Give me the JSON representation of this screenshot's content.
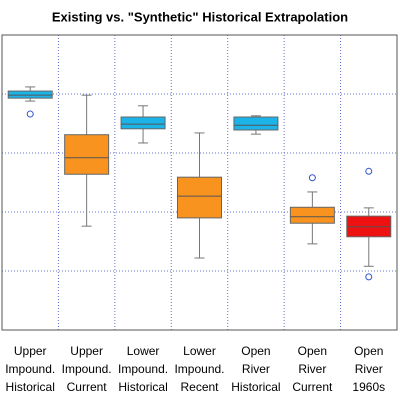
{
  "chart_data": {
    "type": "box",
    "title": "Existing vs. \"Synthetic\" Historical Extrapolation",
    "categories": [
      [
        "Upper",
        "Impound.",
        "Historical"
      ],
      [
        "Upper",
        "Impound.",
        "Current"
      ],
      [
        "Lower",
        "Impound.",
        "Historical"
      ],
      [
        "Lower",
        "Impound.",
        "Recent"
      ],
      [
        "Open",
        "River",
        "Historical"
      ],
      [
        "Open",
        "River",
        "Current"
      ],
      [
        "Open",
        "River",
        "1960s"
      ]
    ],
    "colors": [
      "#1cb4e8",
      "#f7931e",
      "#1cb4e8",
      "#f7931e",
      "#1cb4e8",
      "#f7931e",
      "#ee1111"
    ],
    "boxes": [
      {
        "whisker_low": 3.88,
        "q1": 3.93,
        "median": 3.98,
        "q3": 4.05,
        "whisker_high": 4.12,
        "outliers": [
          3.66
        ]
      },
      {
        "whisker_low": 1.76,
        "q1": 2.64,
        "median": 2.92,
        "q3": 3.31,
        "whisker_high": 3.98,
        "outliers": []
      },
      {
        "whisker_low": 3.17,
        "q1": 3.41,
        "median": 3.49,
        "q3": 3.61,
        "whisker_high": 3.8,
        "outliers": []
      },
      {
        "whisker_low": 1.22,
        "q1": 1.9,
        "median": 2.27,
        "q3": 2.59,
        "whisker_high": 3.34,
        "outliers": []
      },
      {
        "whisker_low": 3.32,
        "q1": 3.39,
        "median": 3.47,
        "q3": 3.61,
        "whisker_high": 3.63,
        "outliers": []
      },
      {
        "whisker_low": 1.46,
        "q1": 1.81,
        "median": 1.92,
        "q3": 2.08,
        "whisker_high": 2.34,
        "outliers": [
          2.58
        ]
      },
      {
        "whisker_low": 1.08,
        "q1": 1.58,
        "median": 1.75,
        "q3": 1.93,
        "whisker_high": 2.07,
        "outliers": [
          2.69,
          0.9
        ]
      }
    ],
    "ylim": [
      0,
      5
    ],
    "yticks": [
      1,
      2,
      3,
      4
    ],
    "grid": true
  }
}
